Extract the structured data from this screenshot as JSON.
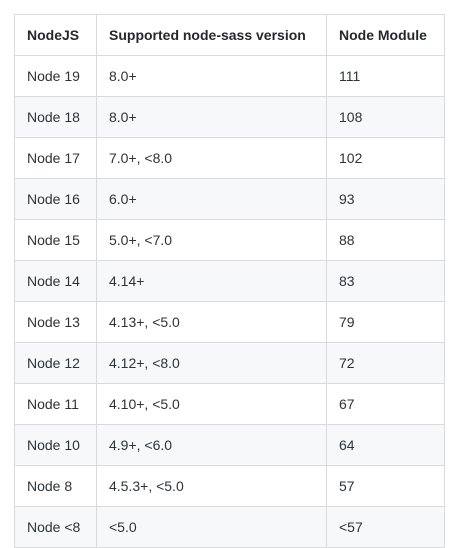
{
  "table": {
    "headers": [
      "NodeJS",
      "Supported node-sass version",
      "Node Module"
    ],
    "rows": [
      [
        "Node 19",
        "8.0+",
        "111"
      ],
      [
        "Node 18",
        "8.0+",
        "108"
      ],
      [
        "Node 17",
        "7.0+, <8.0",
        "102"
      ],
      [
        "Node 16",
        "6.0+",
        "93"
      ],
      [
        "Node 15",
        "5.0+, <7.0",
        "88"
      ],
      [
        "Node 14",
        "4.14+",
        "83"
      ],
      [
        "Node 13",
        "4.13+, <5.0",
        "79"
      ],
      [
        "Node 12",
        "4.12+, <8.0",
        "72"
      ],
      [
        "Node 11",
        "4.10+, <5.0",
        "67"
      ],
      [
        "Node 10",
        "4.9+, <6.0",
        "64"
      ],
      [
        "Node 8",
        "4.5.3+, <5.0",
        "57"
      ],
      [
        "Node <8",
        "<5.0",
        "<57"
      ]
    ]
  }
}
